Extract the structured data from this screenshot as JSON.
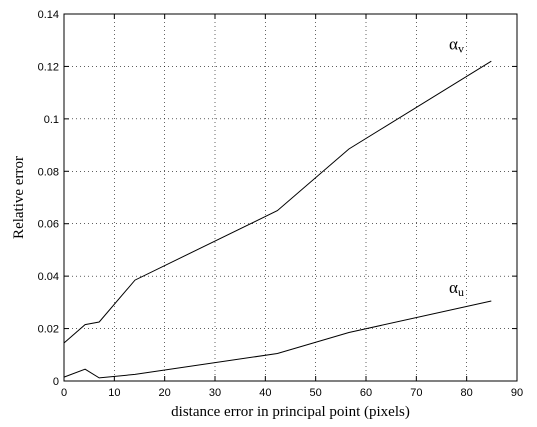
{
  "chart_data": {
    "type": "line",
    "title": "",
    "xlabel": "distance error in principal point (pixels)",
    "ylabel": "Relative error",
    "xlim": [
      0,
      90
    ],
    "ylim": [
      0,
      0.14
    ],
    "xticks": [
      0,
      10,
      20,
      30,
      40,
      50,
      60,
      70,
      80,
      90
    ],
    "xtick_labels": [
      "0",
      "10",
      "20",
      "30",
      "40",
      "50",
      "60",
      "70",
      "80",
      "90"
    ],
    "yticks": [
      0,
      0.02,
      0.04,
      0.06,
      0.08,
      0.1,
      0.12,
      0.14
    ],
    "ytick_labels": [
      "0",
      "0.02",
      "0.04",
      "0.06",
      "0.08",
      "0.1",
      "0.12",
      "0.14"
    ],
    "grid": true,
    "series": [
      {
        "name": "αv",
        "label_main": "α",
        "label_sub": "v",
        "x": [
          0,
          4.2,
          7,
          14.1,
          42.4,
          56.6,
          84.9
        ],
        "y": [
          0.0145,
          0.0215,
          0.0225,
          0.0385,
          0.065,
          0.0885,
          0.122
        ],
        "label_at": [
          76.5,
          0.1265
        ]
      },
      {
        "name": "αu",
        "label_main": "α",
        "label_sub": "u",
        "x": [
          0,
          4.2,
          7,
          14.1,
          42.4,
          56.6,
          84.9
        ],
        "y": [
          0.0015,
          0.0045,
          0.0012,
          0.0025,
          0.0105,
          0.0185,
          0.0305
        ],
        "label_at": [
          76.5,
          0.0335
        ]
      }
    ]
  }
}
